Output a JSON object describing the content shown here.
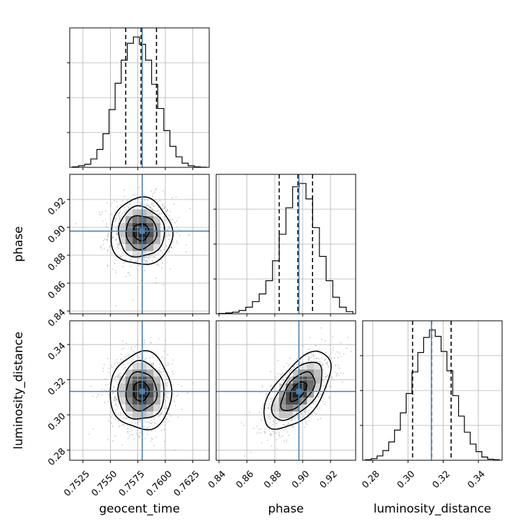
{
  "chart_data": {
    "type": "corner",
    "grid": true,
    "colors": {
      "truth": "#4682b4",
      "hist": "#000000",
      "contour": "#000000",
      "points": "#9a9a9a"
    },
    "parameters": [
      {
        "name": "geocent_time",
        "truth": 0.7579,
        "range": [
          0.7513,
          0.764
        ],
        "ticks": [
          0.7525,
          0.755,
          0.7575,
          0.76,
          0.7625
        ],
        "tick_labels": [
          "0.7525",
          "0.7550",
          "0.7575",
          "0.7600",
          "0.7625"
        ],
        "quantiles": [
          0.7564,
          0.7578,
          0.7592
        ],
        "hist": [
          0.5,
          1.5,
          3,
          8,
          17,
          32,
          55,
          80,
          102,
          118,
          124,
          117,
          102,
          79,
          56,
          35,
          20,
          10,
          4,
          1.5,
          0.5,
          0.2
        ]
      },
      {
        "name": "phase",
        "truth": 0.8973,
        "range": [
          0.838,
          0.938
        ],
        "ticks": [
          0.84,
          0.86,
          0.88,
          0.9,
          0.92
        ],
        "tick_labels": [
          "0.84",
          "0.86",
          "0.88",
          "0.90",
          "0.92"
        ],
        "quantiles": [
          0.8832,
          0.8966,
          0.9071
        ],
        "hist": [
          0.3,
          0.8,
          1.5,
          3,
          6,
          11,
          18,
          30,
          48,
          72,
          96,
          115,
          118,
          104,
          78,
          52,
          30,
          15,
          6,
          2
        ]
      },
      {
        "name": "luminosity_distance",
        "truth": 0.3133,
        "range": [
          0.2742,
          0.3535
        ],
        "ticks": [
          0.28,
          0.3,
          0.32,
          0.34
        ],
        "tick_labels": [
          "0.28",
          "0.30",
          "0.32",
          "0.34"
        ],
        "quantiles": [
          0.3026,
          0.3134,
          0.3245
        ],
        "hist": [
          0.5,
          1.5,
          4,
          9,
          17,
          28,
          44,
          62,
          82,
          100,
          114,
          121,
          115,
          101,
          83,
          60,
          41,
          26,
          15,
          8,
          3,
          1,
          0.5
        ]
      }
    ],
    "pairs": [
      {
        "x": "geocent_time",
        "y": "phase",
        "correlation": 0.0,
        "mean": [
          0.7578,
          0.8966
        ],
        "sd": [
          0.0014,
          0.012
        ]
      },
      {
        "x": "geocent_time",
        "y": "luminosity_distance",
        "correlation": 0.0,
        "mean": [
          0.7578,
          0.3134
        ],
        "sd": [
          0.0014,
          0.011
        ]
      },
      {
        "x": "phase",
        "y": "luminosity_distance",
        "correlation": 0.6,
        "mean": [
          0.8966,
          0.3134
        ],
        "sd": [
          0.012,
          0.011
        ]
      }
    ],
    "contour_levels": [
      0.5,
      1.0,
      1.5,
      2.0
    ]
  }
}
